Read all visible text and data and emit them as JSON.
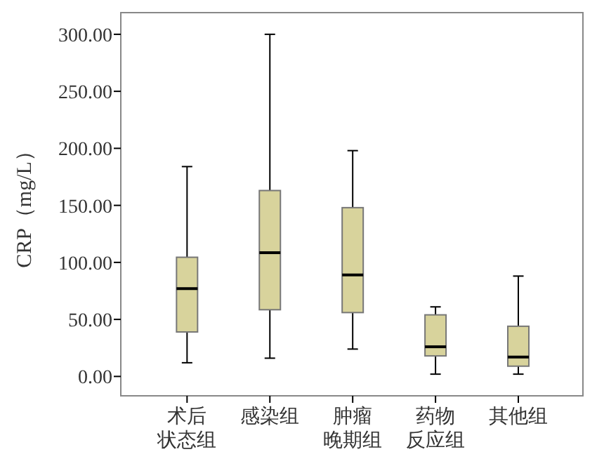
{
  "chart_data": {
    "type": "box",
    "ylabel": "CRP（mg/L）",
    "categories": [
      "术后状态组",
      "感染组",
      "肿瘤晚期组",
      "药物反应组",
      "其他组"
    ],
    "boxes": [
      {
        "low": 12,
        "q1": 39,
        "median": 77,
        "q3": 104.5,
        "high": 184
      },
      {
        "low": 16,
        "q1": 58.5,
        "median": 108.5,
        "q3": 163,
        "high": 300
      },
      {
        "low": 24,
        "q1": 56,
        "median": 89,
        "q3": 148,
        "high": 198
      },
      {
        "low": 2,
        "q1": 18,
        "median": 26,
        "q3": 54,
        "high": 61
      },
      {
        "low": 2,
        "q1": 9,
        "median": 17,
        "q3": 44,
        "high": 88
      }
    ],
    "color": "#d8d39c",
    "ylim": [
      -17,
      319
    ],
    "yticks": [
      {
        "value": 0,
        "label": "0.00"
      },
      {
        "value": 50,
        "label": "50.00"
      },
      {
        "value": 100,
        "label": "100.00"
      },
      {
        "value": 150,
        "label": "150.00"
      },
      {
        "value": 200,
        "label": "200.00"
      },
      {
        "value": 250,
        "label": "250.00"
      },
      {
        "value": 300,
        "label": "300.00"
      }
    ],
    "grid": false
  }
}
